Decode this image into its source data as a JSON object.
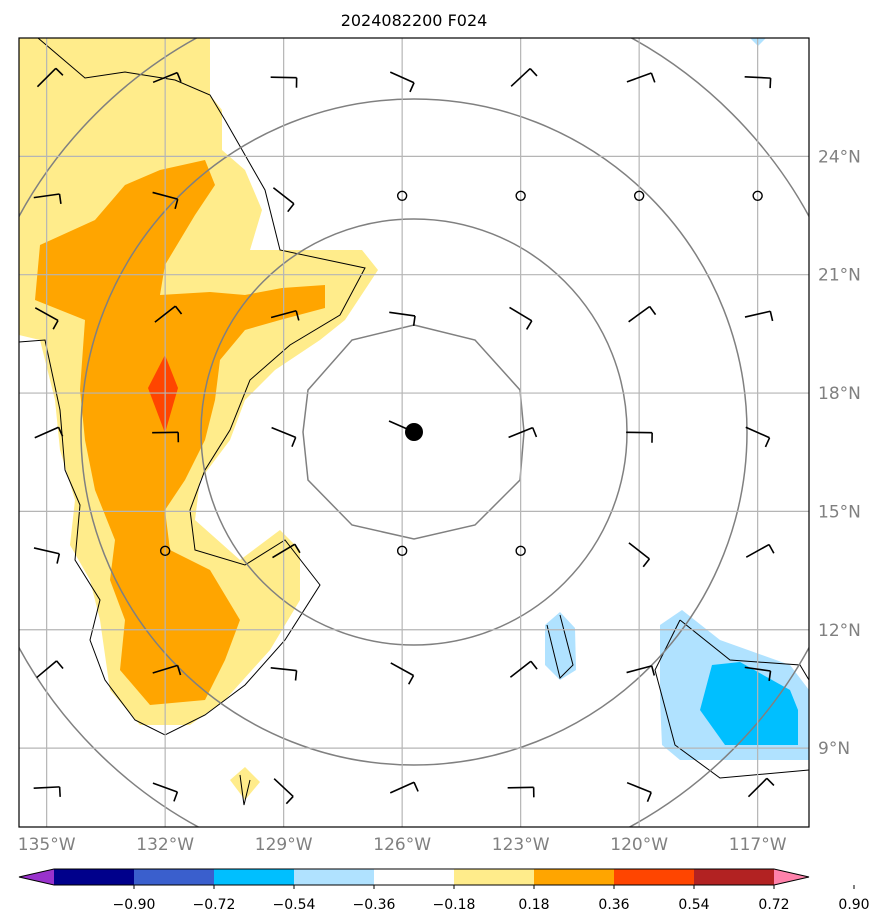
{
  "chart_data": {
    "type": "contour-map",
    "title": "2024082200 F024",
    "x_ticks": [
      "135°W",
      "132°W",
      "129°W",
      "126°W",
      "123°W",
      "120°W",
      "117°W"
    ],
    "x_tick_values": [
      -135,
      -132,
      -129,
      -126,
      -123,
      -120,
      -117
    ],
    "y_ticks": [
      "24°N",
      "21°N",
      "18°N",
      "15°N",
      "12°N",
      "9°N"
    ],
    "y_tick_values": [
      24,
      21,
      18,
      15,
      12,
      9
    ],
    "xlim": [
      -135.7,
      -115.7
    ],
    "ylim": [
      7.0,
      27.0
    ],
    "grid": true,
    "colorbar": {
      "levels": [
        "−0.90",
        "−0.72",
        "−0.54",
        "−0.36",
        "−0.18",
        "0.18",
        "0.36",
        "0.54",
        "0.72",
        "0.90"
      ],
      "colors": [
        "#9932cc",
        "#00008b",
        "#3a5fcd",
        "#00bfff",
        "#b0e2ff",
        "#ffffff",
        "#ffec8b",
        "#ffa500",
        "#ff4500",
        "#b22222",
        "#ff82ab"
      ],
      "extend": "both"
    },
    "center_marker": {
      "lon": -125.7,
      "lat": 16.9
    },
    "range_ring_radii_deg": [
      5.5,
      8.5,
      11.3
    ]
  }
}
